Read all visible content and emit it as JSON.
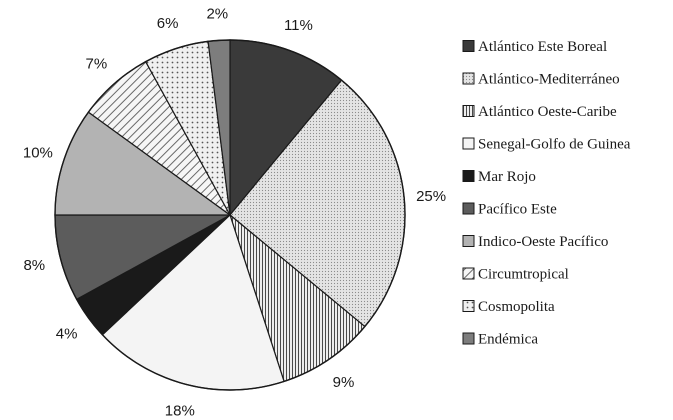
{
  "chart_data": {
    "type": "pie",
    "title": "",
    "start_angle_deg": 0,
    "direction": "clockwise",
    "legend_position": "right",
    "slices": [
      {
        "label": "Atlántico Este Boreal",
        "value": 11,
        "pct_label": "11%",
        "fill": "#3a3a3a",
        "pattern": "solid"
      },
      {
        "label": "Atlántico-Mediterráneo",
        "value": 25,
        "pct_label": "25%",
        "fill": "#e2e2e2",
        "pattern": "fine-dots"
      },
      {
        "label": "Atlántico Oeste-Caribe",
        "value": 9,
        "pct_label": "9%",
        "fill": "#c9c9c9",
        "pattern": "vertical-lines"
      },
      {
        "label": "Senegal-Golfo de Guinea",
        "value": 18,
        "pct_label": "18%",
        "fill": "#f4f4f4",
        "pattern": "plain"
      },
      {
        "label": "Mar Rojo",
        "value": 4,
        "pct_label": "4%",
        "fill": "#1a1a1a",
        "pattern": "solid"
      },
      {
        "label": "Pacífico Este",
        "value": 8,
        "pct_label": "8%",
        "fill": "#5c5c5c",
        "pattern": "solid"
      },
      {
        "label": "Indico-Oeste Pacífico",
        "value": 10,
        "pct_label": "10%",
        "fill": "#b3b3b3",
        "pattern": "solid"
      },
      {
        "label": "Circumtropical",
        "value": 7,
        "pct_label": "7%",
        "fill": "#ebebeb",
        "pattern": "diagonal-lines"
      },
      {
        "label": "Cosmopolita",
        "value": 6,
        "pct_label": "6%",
        "fill": "#dedede",
        "pattern": "coarse-dots"
      },
      {
        "label": "Endémica",
        "value": 2,
        "pct_label": "2%",
        "fill": "#7d7d7d",
        "pattern": "solid"
      }
    ]
  }
}
